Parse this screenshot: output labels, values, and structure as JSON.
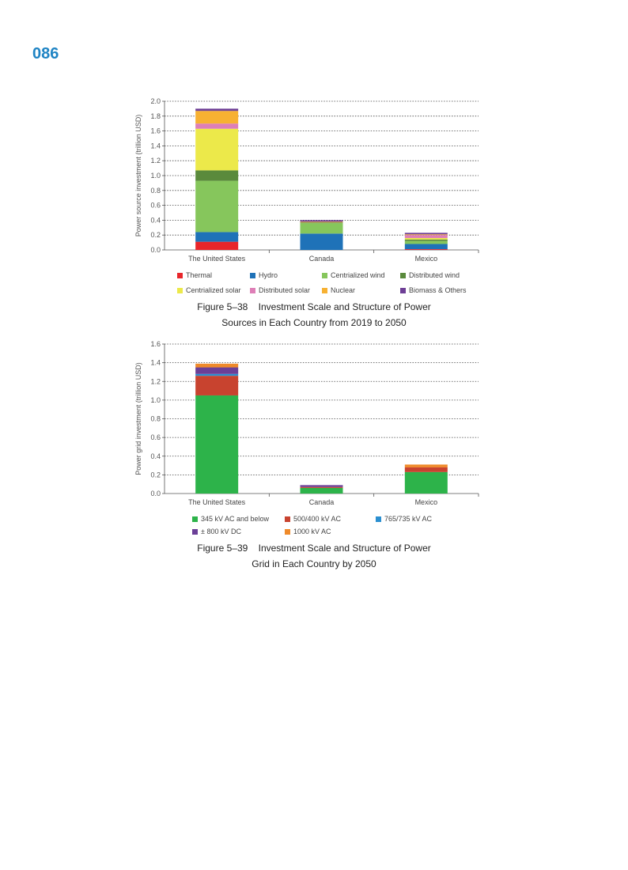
{
  "page": {
    "number": "086"
  },
  "chart_data": [
    {
      "type": "bar",
      "stacked": true,
      "categories": [
        "The United States",
        "Canada",
        "Mexico"
      ],
      "ylabel": "Power source investment (trillion USD)",
      "ylim": [
        0,
        2.0
      ],
      "yticks": [
        "0.0",
        "0.2",
        "0.4",
        "0.6",
        "0.8",
        "1.0",
        "1.2",
        "1.4",
        "1.6",
        "1.8",
        "2.0"
      ],
      "grid": "dotted",
      "series": [
        {
          "name": "Thermal",
          "color": "#e8262b",
          "values": [
            0.11,
            0.0,
            0.01
          ]
        },
        {
          "name": "Hydro",
          "color": "#1f72b8",
          "values": [
            0.13,
            0.22,
            0.07
          ]
        },
        {
          "name": "Centrialized wind",
          "color": "#86c65c",
          "values": [
            0.69,
            0.14,
            0.04
          ]
        },
        {
          "name": "Distributed wind",
          "color": "#5a8a3c",
          "values": [
            0.14,
            0.01,
            0.02
          ]
        },
        {
          "name": "Centrialized solar",
          "color": "#ece94a",
          "values": [
            0.56,
            0.0,
            0.02
          ]
        },
        {
          "name": "Distributed solar",
          "color": "#de7fb7",
          "values": [
            0.07,
            0.0,
            0.04
          ]
        },
        {
          "name": "Nuclear",
          "color": "#f7b132",
          "values": [
            0.17,
            0.01,
            0.01
          ]
        },
        {
          "name": "Biomass & Others",
          "color": "#6e3f96",
          "values": [
            0.03,
            0.02,
            0.02
          ]
        }
      ],
      "caption_line1": "Figure 5–38    Investment Scale and Structure of Power",
      "caption_line2": "Sources in Each Country from 2019 to 2050"
    },
    {
      "type": "bar",
      "stacked": true,
      "categories": [
        "The United States",
        "Canada",
        "Mexico"
      ],
      "ylabel": "Power grid investment (trillion USD)",
      "ylim": [
        0,
        1.6
      ],
      "yticks": [
        "0.0",
        "0.2",
        "0.4",
        "0.6",
        "0.8",
        "1.0",
        "1.2",
        "1.4",
        "1.6"
      ],
      "grid": "dotted",
      "series": [
        {
          "name": "345 kV AC and below",
          "color": "#2db34a",
          "values": [
            1.05,
            0.06,
            0.23
          ]
        },
        {
          "name": "500/400 kV AC",
          "color": "#c8432f",
          "values": [
            0.21,
            0.01,
            0.05
          ]
        },
        {
          "name": "765/735 kV AC",
          "color": "#2b8fd0",
          "values": [
            0.02,
            0.0,
            0.0
          ]
        },
        {
          "name": "± 800 kV DC",
          "color": "#6b3f97",
          "values": [
            0.07,
            0.02,
            0.0
          ]
        },
        {
          "name": "1000 kV AC",
          "color": "#ef8a2a",
          "values": [
            0.04,
            0.0,
            0.03
          ]
        }
      ],
      "caption_line1": "Figure 5–39    Investment Scale and Structure of Power",
      "caption_line2": "Grid in Each Country by 2050"
    }
  ]
}
